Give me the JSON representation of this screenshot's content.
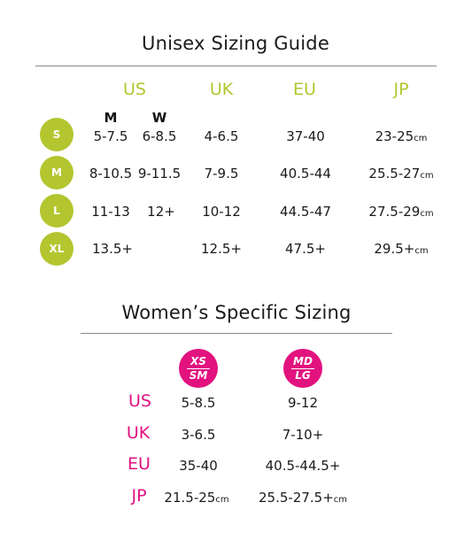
{
  "unisex": {
    "title": "Unisex Sizing Guide",
    "headers": [
      "US",
      "UK",
      "EU",
      "JP"
    ],
    "gender": [
      "M",
      "W"
    ],
    "rows": [
      {
        "size": "S",
        "us_m": "5-7.5",
        "us_w": "6-8.5",
        "uk": "4-6.5",
        "eu": "37-40",
        "jp": "23-25",
        "jp_unit": "cm"
      },
      {
        "size": "M",
        "us_m": "8-10.5",
        "us_w": "9-11.5",
        "uk": "7-9.5",
        "eu": "40.5-44",
        "jp": "25.5-27",
        "jp_unit": "cm"
      },
      {
        "size": "L",
        "us_m": "11-13",
        "us_w": "12+",
        "uk": "10-12",
        "eu": "44.5-47",
        "jp": "27.5-29",
        "jp_unit": "cm"
      },
      {
        "size": "XL",
        "us_m": "13.5+",
        "us_w": "",
        "uk": "12.5+",
        "eu": "47.5+",
        "jp": "29.5+",
        "jp_unit": "cm"
      }
    ],
    "colors": {
      "accent": "#b3c62f"
    }
  },
  "womens": {
    "title": "Women’s Specific Sizing",
    "badges": [
      {
        "top": "XS",
        "bottom": "SM"
      },
      {
        "top": "MD",
        "bottom": "LG"
      }
    ],
    "rows": [
      {
        "label": "US",
        "col1": "5-8.5",
        "col1_unit": "",
        "col2": "9-12",
        "col2_unit": ""
      },
      {
        "label": "UK",
        "col1": "3-6.5",
        "col1_unit": "",
        "col2": "7-10+",
        "col2_unit": ""
      },
      {
        "label": "EU",
        "col1": "35-40",
        "col1_unit": "",
        "col2": "40.5-44.5+",
        "col2_unit": ""
      },
      {
        "label": "JP",
        "col1": "21.5-25",
        "col1_unit": "cm",
        "col2": "25.5-27.5+",
        "col2_unit": "cm"
      }
    ],
    "colors": {
      "accent": "#e2127f"
    }
  }
}
